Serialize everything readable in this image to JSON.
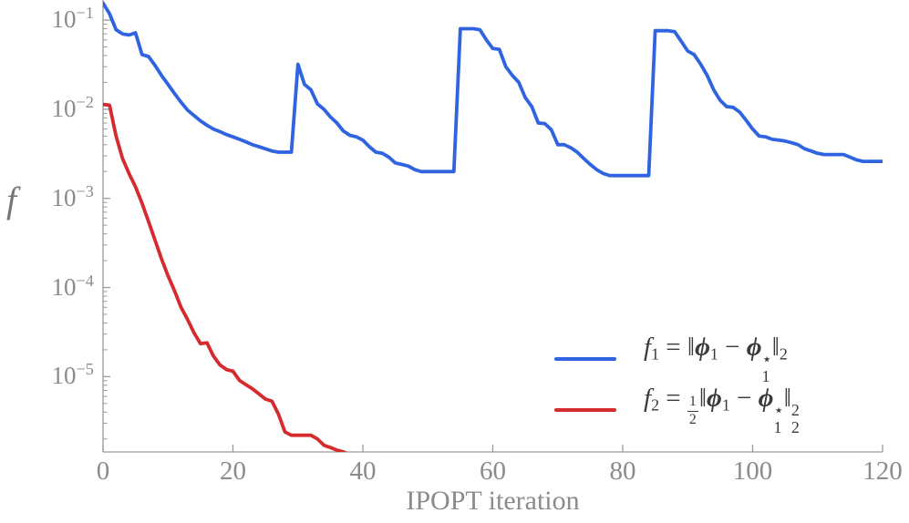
{
  "chart_data": {
    "type": "line",
    "title": "",
    "xlabel": "IPOPT iteration",
    "ylabel": "f",
    "x_range": [
      0,
      120
    ],
    "y_scale": "log",
    "y_range": [
      1.43e-06,
      0.168
    ],
    "grid": false,
    "axis_color": "#9a9a9a",
    "tick_label_color": "#8b8b8b",
    "x_ticks": [
      {
        "label": "0",
        "value": 0
      },
      {
        "label": "20",
        "value": 20
      },
      {
        "label": "40",
        "value": 40
      },
      {
        "label": "60",
        "value": 60
      },
      {
        "label": "80",
        "value": 80
      },
      {
        "label": "100",
        "value": 100
      },
      {
        "label": "120",
        "value": 120
      }
    ],
    "y_ticks": [
      {
        "base": "10",
        "exp": "−1",
        "value": 0.1
      },
      {
        "base": "10",
        "exp": "−2",
        "value": 0.01
      },
      {
        "base": "10",
        "exp": "−3",
        "value": 0.001
      },
      {
        "base": "10",
        "exp": "−4",
        "value": 0.0001
      },
      {
        "base": "10",
        "exp": "−5",
        "value": 1e-05
      }
    ],
    "series": [
      {
        "name": "f1",
        "color": "#2f63e0",
        "x_start": 0,
        "values": [
          0.155,
          0.118,
          0.078,
          0.07,
          0.068,
          0.072,
          0.041,
          0.039,
          0.031,
          0.024,
          0.019,
          0.015,
          0.012,
          0.0098,
          0.0085,
          0.0074,
          0.0066,
          0.006,
          0.0056,
          0.0052,
          0.0049,
          0.0046,
          0.0043,
          0.004,
          0.0038,
          0.0036,
          0.0034,
          0.0033,
          0.0033,
          0.0033,
          0.032,
          0.019,
          0.0165,
          0.0115,
          0.01,
          0.0082,
          0.007,
          0.0057,
          0.0051,
          0.0049,
          0.0045,
          0.0038,
          0.0033,
          0.0032,
          0.0029,
          0.0025,
          0.0024,
          0.0023,
          0.0021,
          0.002,
          0.002,
          0.002,
          0.002,
          0.002,
          0.002,
          0.08,
          0.08,
          0.08,
          0.078,
          0.06,
          0.048,
          0.047,
          0.03,
          0.024,
          0.02,
          0.0135,
          0.0107,
          0.007,
          0.0069,
          0.0059,
          0.004,
          0.004,
          0.0037,
          0.0033,
          0.0028,
          0.0024,
          0.0021,
          0.0019,
          0.0018,
          0.0018,
          0.0018,
          0.0018,
          0.0018,
          0.0018,
          0.0018,
          0.076,
          0.076,
          0.076,
          0.074,
          0.058,
          0.045,
          0.041,
          0.032,
          0.024,
          0.0165,
          0.0126,
          0.0107,
          0.0105,
          0.0093,
          0.0075,
          0.006,
          0.005,
          0.0049,
          0.0046,
          0.0045,
          0.0044,
          0.0042,
          0.004,
          0.0036,
          0.0034,
          0.0032,
          0.0031,
          0.0031,
          0.0031,
          0.0031,
          0.0029,
          0.0027,
          0.0026,
          0.0026,
          0.0026,
          0.0026
        ]
      },
      {
        "name": "f2",
        "color": "#d62b2e",
        "x_start": 0,
        "values": [
          0.0113,
          0.0111,
          0.005,
          0.0028,
          0.0019,
          0.00135,
          0.00088,
          0.00055,
          0.00034,
          0.00021,
          0.000135,
          9.2e-05,
          6e-05,
          4.4e-05,
          3.1e-05,
          2.35e-05,
          2.4e-05,
          1.7e-05,
          1.35e-05,
          1.2e-05,
          1.15e-05,
          9.1e-06,
          8.1e-06,
          7.3e-06,
          6.4e-06,
          5.6e-06,
          5.3e-06,
          3.8e-06,
          2.4e-06,
          2.2e-06,
          2.2e-06,
          2.2e-06,
          2.2e-06,
          2e-06,
          1.7e-06,
          1.6e-06,
          1.5e-06,
          1.43e-06,
          1.32e-06
        ]
      }
    ],
    "legend": {
      "position": "lower right",
      "entries": [
        {
          "series": "f1",
          "color": "#2f63e0",
          "plain_text": "f₁ = ‖ϕ₁ − ϕ₁⋆‖₂",
          "segments": [
            {
              "t": "it",
              "v": "f"
            },
            {
              "t": "sub",
              "v": "1"
            },
            {
              "t": "txt",
              "v": " = "
            },
            {
              "t": "txt",
              "v": "‖"
            },
            {
              "t": "bi",
              "v": "ϕ"
            },
            {
              "t": "sub",
              "v": "1"
            },
            {
              "t": "txt",
              "v": " − "
            },
            {
              "t": "bi",
              "v": "ϕ"
            },
            {
              "t": "subsup",
              "sup": "⋆",
              "sub": "1"
            },
            {
              "t": "txt",
              "v": "‖"
            },
            {
              "t": "sub",
              "v": "2"
            }
          ]
        },
        {
          "series": "f2",
          "color": "#d62b2e",
          "plain_text": "f₂ = ½‖ϕ₁ − ϕ₁⋆‖₂²",
          "segments": [
            {
              "t": "it",
              "v": "f"
            },
            {
              "t": "sub",
              "v": "2"
            },
            {
              "t": "txt",
              "v": " = "
            },
            {
              "t": "frac",
              "num": "1",
              "den": "2"
            },
            {
              "t": "txt",
              "v": "‖"
            },
            {
              "t": "bi",
              "v": "ϕ"
            },
            {
              "t": "sub",
              "v": "1"
            },
            {
              "t": "txt",
              "v": " − "
            },
            {
              "t": "bi",
              "v": "ϕ"
            },
            {
              "t": "subsup",
              "sup": "⋆",
              "sub": "1"
            },
            {
              "t": "txt",
              "v": "‖"
            },
            {
              "t": "subsup",
              "sup": "2",
              "sub": "2"
            }
          ]
        }
      ]
    }
  }
}
